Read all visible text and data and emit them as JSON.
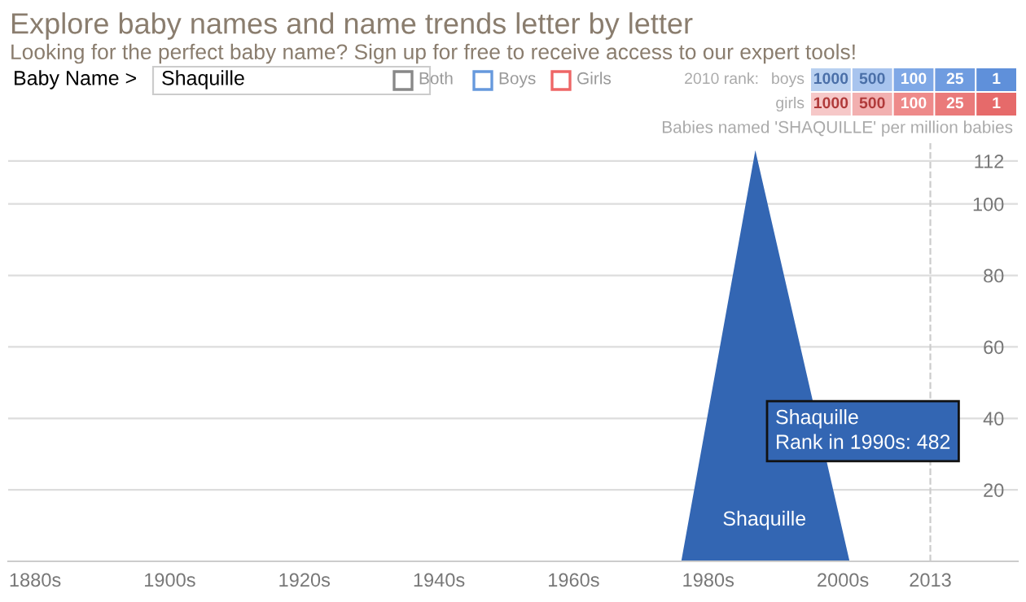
{
  "chart_data": {
    "type": "area",
    "title": "Explore baby names and name trends letter by letter",
    "subtitle": "Looking for the perfect baby name? Sign up for free to receive access to our expert tools!",
    "ylabel": "Babies named 'SHAQUILLE' per million babies",
    "series": [
      {
        "name": "Shaquille",
        "color": "#3366b3",
        "x": [
          1880,
          1976,
          1987,
          2001,
          2013
        ],
        "values": [
          0,
          0,
          115,
          0,
          0
        ]
      }
    ],
    "xlim": [
      1876,
      2026
    ],
    "ylim": [
      0,
      117
    ],
    "xticks": [
      {
        "value": 1880,
        "label": "1880s"
      },
      {
        "value": 1900,
        "label": "1900s"
      },
      {
        "value": 1920,
        "label": "1920s"
      },
      {
        "value": 1940,
        "label": "1940s"
      },
      {
        "value": 1960,
        "label": "1960s"
      },
      {
        "value": 1980,
        "label": "1980s"
      },
      {
        "value": 2000,
        "label": "2000s"
      },
      2013
    ],
    "yticks": [
      20,
      40,
      60,
      80,
      100,
      112
    ],
    "grid": "y",
    "ref_lines": [
      {
        "axis": "x",
        "value": 2013,
        "color": "#cccccc",
        "line_style": "dashed"
      }
    ],
    "annotations": [
      "Baby Name >",
      "Shaquille",
      "Both",
      "Boys",
      "Girls",
      "2010 rank:",
      "boys",
      "girls",
      "1000",
      "500",
      "100",
      "25",
      "1",
      "1000",
      "500",
      "100",
      "25",
      "1",
      "Shaquille\nRank in 1990s: 482"
    ]
  }
}
